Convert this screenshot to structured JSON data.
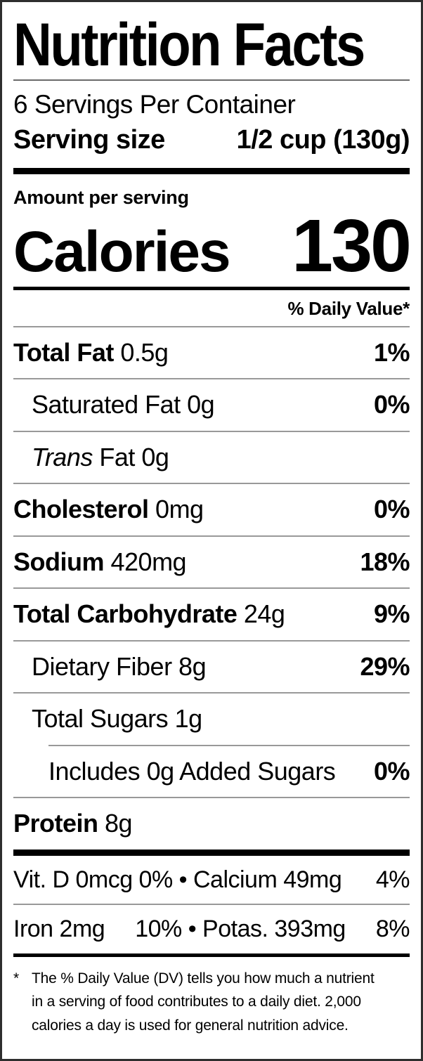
{
  "header": {
    "title": "Nutrition Facts",
    "servings_per_container": "6 Servings Per Container",
    "serving_size_label": "Serving size",
    "serving_size_value": "1/2 cup (130g)"
  },
  "calories": {
    "amount_per_serving_label": "Amount per serving",
    "label": "Calories",
    "value": "130"
  },
  "daily_value_header": "% Daily Value*",
  "nutrient_rows": [
    {
      "indent": 0,
      "parts": [
        {
          "text": "Total Fat",
          "style": "bold"
        },
        {
          "text": " 0.5g",
          "style": "regular"
        }
      ],
      "dv": "1%"
    },
    {
      "indent": 1,
      "parts": [
        {
          "text": "Saturated Fat 0g",
          "style": "regular"
        }
      ],
      "dv": "0%"
    },
    {
      "indent": 1,
      "parts": [
        {
          "text": "Trans",
          "style": "italic"
        },
        {
          "text": " Fat 0g",
          "style": "regular"
        }
      ],
      "dv": ""
    },
    {
      "indent": 0,
      "parts": [
        {
          "text": "Cholesterol",
          "style": "bold"
        },
        {
          "text": " 0mg",
          "style": "regular"
        }
      ],
      "dv": "0%"
    },
    {
      "indent": 0,
      "parts": [
        {
          "text": "Sodium",
          "style": "bold"
        },
        {
          "text": " 420mg",
          "style": "regular"
        }
      ],
      "dv": "18%"
    },
    {
      "indent": 0,
      "parts": [
        {
          "text": "Total Carbohydrate",
          "style": "bold"
        },
        {
          "text": " 24g",
          "style": "regular"
        }
      ],
      "dv": "9%"
    },
    {
      "indent": 1,
      "parts": [
        {
          "text": "Dietary Fiber 8g",
          "style": "regular"
        }
      ],
      "dv": "29%"
    },
    {
      "indent": 1,
      "parts": [
        {
          "text": "Total Sugars 1g",
          "style": "regular"
        }
      ],
      "dv": ""
    },
    {
      "indent": 2,
      "parts": [
        {
          "text": "Includes 0g Added Sugars",
          "style": "regular"
        }
      ],
      "dv": "0%"
    },
    {
      "indent": 0,
      "parts": [
        {
          "text": "Protein",
          "style": "bold"
        },
        {
          "text": " 8g",
          "style": "regular"
        }
      ],
      "dv": ""
    }
  ],
  "micronutrient_rows": [
    {
      "segments": [
        "Vit. D 0mcg 0% • Calcium 49mg"
      ],
      "dv": "4%"
    },
    {
      "segments": [
        "Iron 2mg",
        "10% • Potas. 393mg"
      ],
      "dv": "8%"
    }
  ],
  "footnote": {
    "marker": "*",
    "lines": [
      "The % Daily Value (DV) tells you how much a nutrient",
      "in a serving of food contributes to a daily diet. 2,000",
      "calories a day is used for general nutrition advice."
    ]
  }
}
